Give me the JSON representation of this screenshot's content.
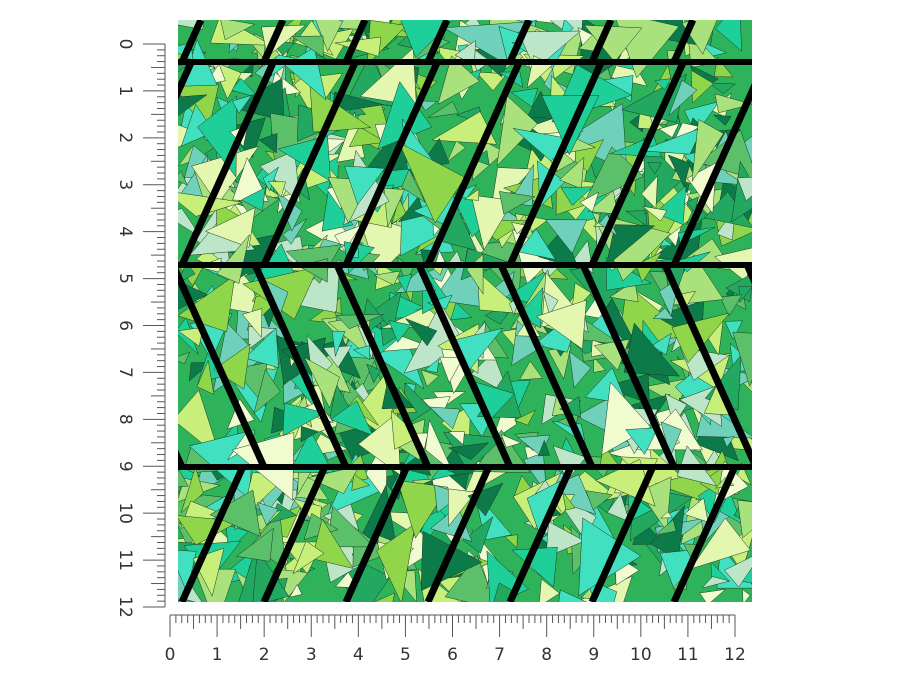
{
  "rulers": {
    "vertical": {
      "labels": [
        0,
        1,
        2,
        3,
        4,
        5,
        6,
        7,
        8,
        9,
        10,
        11,
        12
      ]
    },
    "horizontal": {
      "labels": [
        0,
        1,
        2,
        3,
        4,
        5,
        6,
        7,
        8,
        9,
        10,
        11,
        12
      ]
    }
  }
}
